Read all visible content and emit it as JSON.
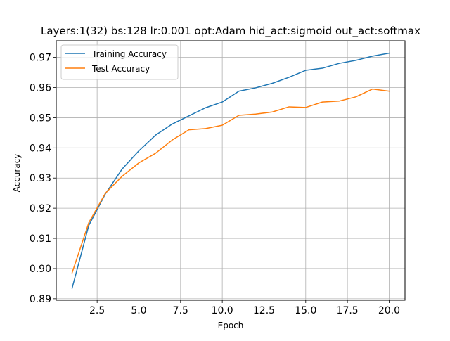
{
  "chart_data": {
    "type": "line",
    "title": "Layers:1(32) bs:128 lr:0.001 opt:Adam hid_act:sigmoid out_act:softmax",
    "xlabel": "Epoch",
    "ylabel": "Accuracy",
    "xlim": [
      0.05,
      20.95
    ],
    "ylim": [
      0.8895,
      0.9755
    ],
    "xticks": [
      2.5,
      5.0,
      7.5,
      10.0,
      12.5,
      15.0,
      17.5,
      20.0
    ],
    "xtick_labels": [
      "2.5",
      "5.0",
      "7.5",
      "10.0",
      "12.5",
      "15.0",
      "17.5",
      "20.0"
    ],
    "yticks": [
      0.89,
      0.9,
      0.91,
      0.92,
      0.93,
      0.94,
      0.95,
      0.96,
      0.97
    ],
    "ytick_labels": [
      "0.89",
      "0.90",
      "0.91",
      "0.92",
      "0.93",
      "0.94",
      "0.95",
      "0.96",
      "0.97"
    ],
    "grid": true,
    "legend_position": "top-left",
    "x": [
      1,
      2,
      3,
      4,
      5,
      6,
      7,
      8,
      9,
      10,
      11,
      12,
      13,
      14,
      15,
      16,
      17,
      18,
      19,
      20
    ],
    "series": [
      {
        "name": "Training Accuracy",
        "color": "#1f77b4",
        "values": [
          0.8935,
          0.9143,
          0.9248,
          0.933,
          0.939,
          0.9442,
          0.9479,
          0.9506,
          0.9533,
          0.9552,
          0.9588,
          0.9599,
          0.9614,
          0.9634,
          0.9657,
          0.9664,
          0.968,
          0.969,
          0.9704,
          0.9714
        ]
      },
      {
        "name": "Test Accuracy",
        "color": "#ff7f0e",
        "values": [
          0.8986,
          0.9152,
          0.925,
          0.9306,
          0.935,
          0.9382,
          0.9426,
          0.946,
          0.9464,
          0.9475,
          0.9508,
          0.9512,
          0.9519,
          0.9536,
          0.9534,
          0.9552,
          0.9555,
          0.9569,
          0.9595,
          0.9588
        ]
      }
    ]
  }
}
